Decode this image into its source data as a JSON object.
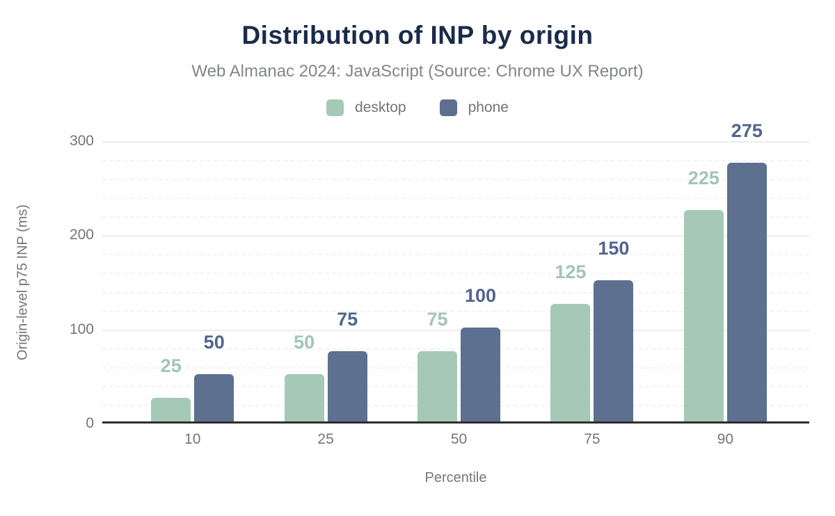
{
  "header": {
    "title": "Distribution of INP by origin",
    "subtitle": "Web Almanac 2024: JavaScript (Source: Chrome UX Report)"
  },
  "chart_data": {
    "type": "bar",
    "title": "Distribution of INP by origin",
    "subtitle": "Web Almanac 2024: JavaScript (Source: Chrome UX Report)",
    "categories": [
      "10",
      "25",
      "50",
      "75",
      "90"
    ],
    "series": [
      {
        "name": "desktop",
        "color": "#a5c9b6",
        "label_color": "#a0c6b2",
        "values": [
          25,
          50,
          75,
          125,
          225
        ]
      },
      {
        "name": "phone",
        "color": "#5d7090",
        "label_color": "#51658b",
        "values": [
          50,
          75,
          100,
          150,
          275
        ]
      }
    ],
    "xlabel": "Percentile",
    "ylabel": "Origin-level p75 INP (ms)",
    "ylim": [
      0,
      300
    ],
    "yticks": [
      0,
      100,
      200,
      300
    ],
    "minor_tick_interval": 20,
    "grid": true,
    "legend_position": "top",
    "data_labels": true
  },
  "colors": {
    "title": "#1a2b4a",
    "subtitle": "#828587",
    "axis_text": "#757575",
    "axis_line": "#2d2d2d",
    "grid_major": "#ececec",
    "grid_minor": "#f3f3f3",
    "background": "#ffffff"
  }
}
